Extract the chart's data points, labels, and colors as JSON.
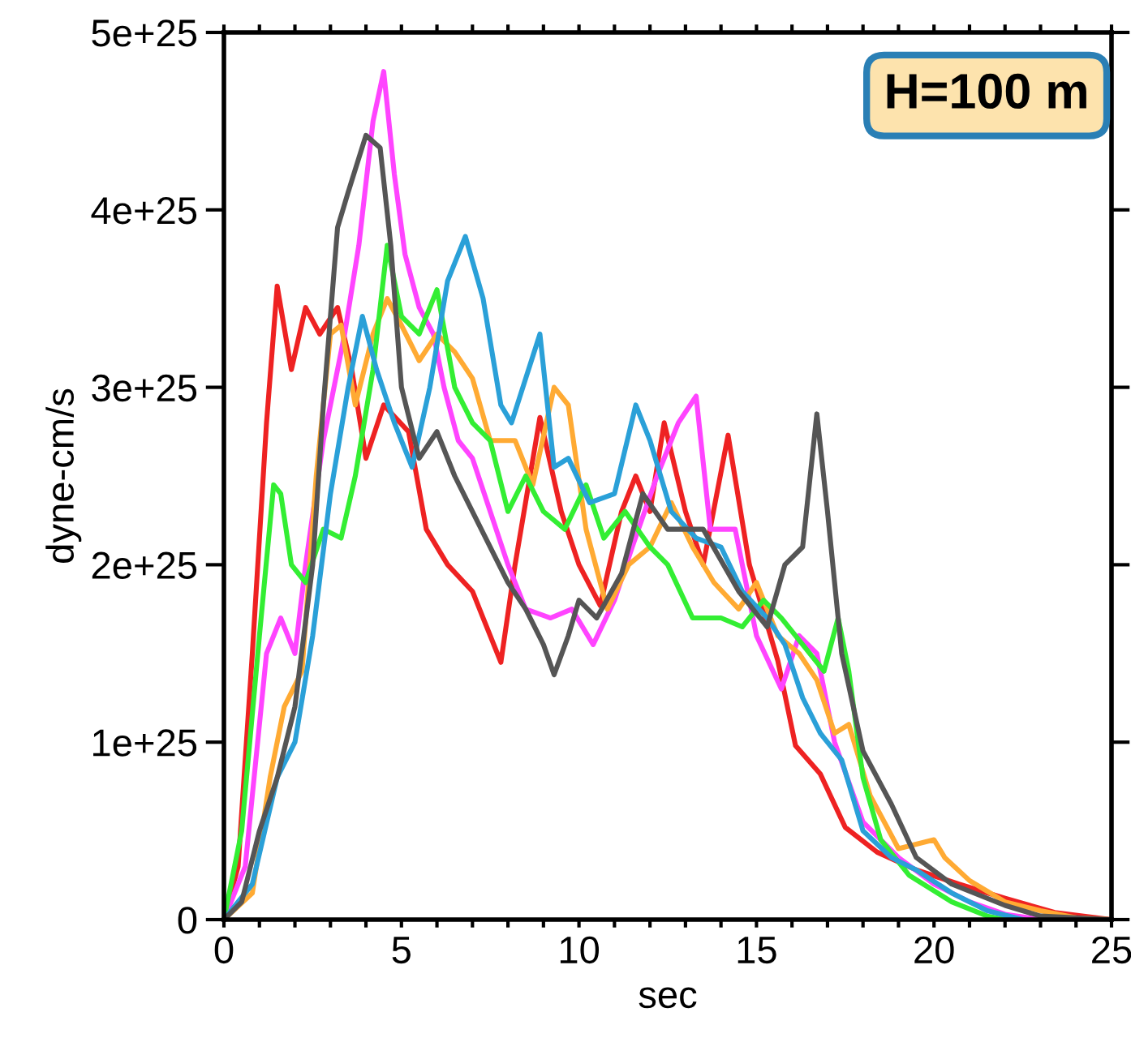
{
  "chart_data": {
    "type": "line",
    "xlabel": "sec",
    "ylabel": "dyne-cm/s",
    "annotations": [
      "H=100 m"
    ],
    "xlim": [
      0,
      25
    ],
    "ylim": [
      0,
      5e+25
    ],
    "xticks": [
      0,
      {
        "value": 1,
        "label": null
      },
      {
        "value": 2,
        "label": null
      },
      {
        "value": 3,
        "label": null
      },
      {
        "value": 4,
        "label": null
      },
      5,
      {
        "value": 6,
        "label": null
      },
      {
        "value": 7,
        "label": null
      },
      {
        "value": 8,
        "label": null
      },
      {
        "value": 9,
        "label": null
      },
      10,
      {
        "value": 11,
        "label": null
      },
      {
        "value": 12,
        "label": null
      },
      {
        "value": 13,
        "label": null
      },
      {
        "value": 14,
        "label": null
      },
      15,
      {
        "value": 16,
        "label": null
      },
      {
        "value": 17,
        "label": null
      },
      {
        "value": 18,
        "label": null
      },
      {
        "value": 19,
        "label": null
      },
      20,
      {
        "value": 21,
        "label": null
      },
      {
        "value": 22,
        "label": null
      },
      {
        "value": 23,
        "label": null
      },
      {
        "value": 24,
        "label": null
      },
      25
    ],
    "yticks": [
      0,
      {
        "value": 1e+25,
        "label": "1e+25"
      },
      {
        "value": 2e+25,
        "label": "2e+25"
      },
      {
        "value": 3e+25,
        "label": "3e+25"
      },
      {
        "value": 4e+25,
        "label": "4e+25"
      },
      {
        "value": 5e+25,
        "label": "5e+25"
      }
    ],
    "grid": false,
    "legend": false,
    "marker": "none",
    "line_style": "solid",
    "series": [
      {
        "color": "#ee2222",
        "x": [
          0,
          0.4,
          0.8,
          1.2,
          1.5,
          1.9,
          2.3,
          2.7,
          3.2,
          3.6,
          4.0,
          4.5,
          5.2,
          5.7,
          6.3,
          7.0,
          7.5,
          7.8,
          8.2,
          8.9,
          9.5,
          10.0,
          10.6,
          11.2,
          11.6,
          12.0,
          12.4,
          13.0,
          13.5,
          14.2,
          14.8,
          15.6,
          16.1,
          16.8,
          17.5,
          18.4,
          19.5,
          20.7,
          22,
          23.4,
          25
        ],
        "values": [
          0,
          3e+24,
          1.5e+25,
          2.8e+25,
          3.57e+25,
          3.1e+25,
          3.45e+25,
          3.3e+25,
          3.45e+25,
          3.1e+25,
          2.6e+25,
          2.9e+25,
          2.75e+25,
          2.2e+25,
          2e+25,
          1.85e+25,
          1.6e+25,
          1.45e+25,
          2e+25,
          2.83e+25,
          2.3e+25,
          2e+25,
          1.77e+25,
          2.3e+25,
          2.5e+25,
          2.3e+25,
          2.8e+25,
          2.3e+25,
          2e+25,
          2.73e+25,
          2e+25,
          1.46e+25,
          9.8e+24,
          8.2e+24,
          5.2e+24,
          3.8e+24,
          2.8e+24,
          2e+24,
          1.2e+24,
          4e+23,
          0
        ]
      },
      {
        "color": "#ff44ff",
        "x": [
          0,
          0.6,
          1.2,
          1.6,
          2.0,
          2.3,
          2.8,
          3.4,
          3.8,
          4.2,
          4.5,
          4.8,
          5.1,
          5.5,
          5.9,
          6.2,
          6.6,
          7.0,
          7.5,
          8.0,
          8.5,
          9.2,
          9.8,
          10.4,
          11.0,
          11.5,
          12.2,
          12.8,
          13.3,
          13.7,
          14.4,
          15.0,
          15.7,
          16.2,
          16.7,
          17.2,
          18,
          19,
          20,
          21,
          22,
          23
        ],
        "values": [
          0,
          3e+24,
          1.5e+25,
          1.7e+25,
          1.5e+25,
          2e+25,
          2.7e+25,
          3.3e+25,
          3.8e+25,
          4.5e+25,
          4.78e+25,
          4.2e+25,
          3.75e+25,
          3.45e+25,
          3.3e+25,
          3e+25,
          2.7e+25,
          2.6e+25,
          2.3e+25,
          2e+25,
          1.75e+25,
          1.7e+25,
          1.75e+25,
          1.55e+25,
          1.8e+25,
          2.1e+25,
          2.5e+25,
          2.8e+25,
          2.95e+25,
          2.2e+25,
          2.2e+25,
          1.6e+25,
          1.3e+25,
          1.6e+25,
          1.5e+25,
          1e+25,
          5.5e+24,
          3.5e+24,
          2e+24,
          1e+24,
          3e+23,
          0
        ]
      },
      {
        "color": "#ffaa33",
        "x": [
          0,
          0.8,
          1.3,
          1.7,
          2.2,
          2.6,
          3.0,
          3.3,
          3.7,
          4.2,
          4.6,
          5.0,
          5.5,
          6.0,
          6.5,
          7.0,
          7.5,
          8.2,
          8.7,
          9.3,
          9.7,
          10.2,
          10.8,
          11.4,
          12.0,
          12.6,
          13.2,
          13.8,
          14.5,
          15.0,
          15.6,
          16.2,
          16.7,
          17.2,
          17.6,
          18.2,
          19.0,
          20.0,
          20.3,
          21,
          22,
          23,
          24,
          25
        ],
        "values": [
          0,
          1.5e+24,
          8e+24,
          1.2e+25,
          1.4e+25,
          2.5e+25,
          3.3e+25,
          3.35e+25,
          2.9e+25,
          3.3e+25,
          3.5e+25,
          3.35e+25,
          3.15e+25,
          3.3e+25,
          3.2e+25,
          3.05e+25,
          2.7e+25,
          2.7e+25,
          2.45e+25,
          3e+25,
          2.9e+25,
          2.2e+25,
          1.75e+25,
          2e+25,
          2.1e+25,
          2.35e+25,
          2.1e+25,
          1.9e+25,
          1.75e+25,
          1.9e+25,
          1.6e+25,
          1.5e+25,
          1.35e+25,
          1.05e+25,
          1.1e+25,
          7e+24,
          4e+24,
          4.5e+24,
          3.5e+24,
          2.2e+24,
          1e+24,
          5e+23,
          1e+23,
          0
        ]
      },
      {
        "color": "#33ee33",
        "x": [
          0,
          0.5,
          1.0,
          1.4,
          1.6,
          1.9,
          2.3,
          2.8,
          3.3,
          3.7,
          4.2,
          4.6,
          5.0,
          5.5,
          6.0,
          6.5,
          7.0,
          7.5,
          8.0,
          8.5,
          9.0,
          9.6,
          10.2,
          10.7,
          11.3,
          12.0,
          12.5,
          13.2,
          14.0,
          14.6,
          15.2,
          15.7,
          16.3,
          16.9,
          17.3,
          17.6,
          18.0,
          18.5,
          19.3,
          20.5,
          21.5,
          22
        ],
        "values": [
          0,
          5e+24,
          1.6e+25,
          2.45e+25,
          2.4e+25,
          2e+25,
          1.9e+25,
          2.2e+25,
          2.15e+25,
          2.5e+25,
          3.1e+25,
          3.8e+25,
          3.4e+25,
          3.3e+25,
          3.55e+25,
          3e+25,
          2.8e+25,
          2.7e+25,
          2.3e+25,
          2.5e+25,
          2.3e+25,
          2.2e+25,
          2.45e+25,
          2.15e+25,
          2.3e+25,
          2.1e+25,
          2e+25,
          1.7e+25,
          1.7e+25,
          1.65e+25,
          1.8e+25,
          1.7e+25,
          1.55e+25,
          1.4e+25,
          1.7e+25,
          1.4e+25,
          8e+24,
          4.5e+24,
          2.5e+24,
          1e+24,
          2e+23,
          0
        ]
      },
      {
        "color": "#2aa0d8",
        "x": [
          0,
          0.8,
          1.5,
          2.0,
          2.5,
          3.0,
          3.5,
          3.9,
          4.3,
          4.8,
          5.3,
          5.8,
          6.3,
          6.8,
          7.3,
          7.8,
          8.1,
          8.5,
          8.9,
          9.3,
          9.7,
          10.3,
          11.0,
          11.6,
          12.0,
          12.6,
          13.3,
          14.0,
          14.6,
          15.3,
          15.8,
          16.3,
          16.8,
          17.4,
          18.0,
          18.8,
          19.5,
          20.5,
          21.5,
          22.5
        ],
        "values": [
          0,
          2e+24,
          8e+24,
          1e+25,
          1.6e+25,
          2.4e+25,
          3e+25,
          3.4e+25,
          3.1e+25,
          2.8e+25,
          2.55e+25,
          3e+25,
          3.6e+25,
          3.85e+25,
          3.5e+25,
          2.9e+25,
          2.8e+25,
          3.05e+25,
          3.3e+25,
          2.55e+25,
          2.6e+25,
          2.35e+25,
          2.4e+25,
          2.9e+25,
          2.7e+25,
          2.3e+25,
          2.15e+25,
          2.1e+25,
          1.85e+25,
          1.7e+25,
          1.55e+25,
          1.25e+25,
          1.05e+25,
          9e+24,
          5e+24,
          3.5e+24,
          2.8e+24,
          1.5e+24,
          5e+23,
          0
        ]
      },
      {
        "color": "#555555",
        "x": [
          0,
          0.5,
          1,
          1.5,
          2,
          2.5,
          2.8,
          3.2,
          3.5,
          4.0,
          4.4,
          4.7,
          5.0,
          5.5,
          6.0,
          6.5,
          7.0,
          7.5,
          8.0,
          8.5,
          9.0,
          9.3,
          9.7,
          10.0,
          10.5,
          11.2,
          11.8,
          12.5,
          13.5,
          14.5,
          15.3,
          15.8,
          16.3,
          16.7,
          17.0,
          17.4,
          18.0,
          18.8,
          19.5,
          20.5,
          22,
          23,
          25
        ],
        "values": [
          0,
          1e+24,
          5e+24,
          8e+24,
          1.2e+25,
          2e+25,
          2.9e+25,
          3.9e+25,
          4.1e+25,
          4.42e+25,
          4.35e+25,
          3.8e+25,
          3e+25,
          2.6e+25,
          2.75e+25,
          2.5e+25,
          2.3e+25,
          2.1e+25,
          1.9e+25,
          1.75e+25,
          1.55e+25,
          1.38e+25,
          1.6e+25,
          1.8e+25,
          1.7e+25,
          1.95e+25,
          2.4e+25,
          2.2e+25,
          2.2e+25,
          1.85e+25,
          1.65e+25,
          2e+25,
          2.1e+25,
          2.85e+25,
          2.3e+25,
          1.5e+25,
          9.5e+24,
          6.5e+24,
          3.5e+24,
          2e+24,
          8e+23,
          2e+23,
          0
        ]
      }
    ]
  }
}
